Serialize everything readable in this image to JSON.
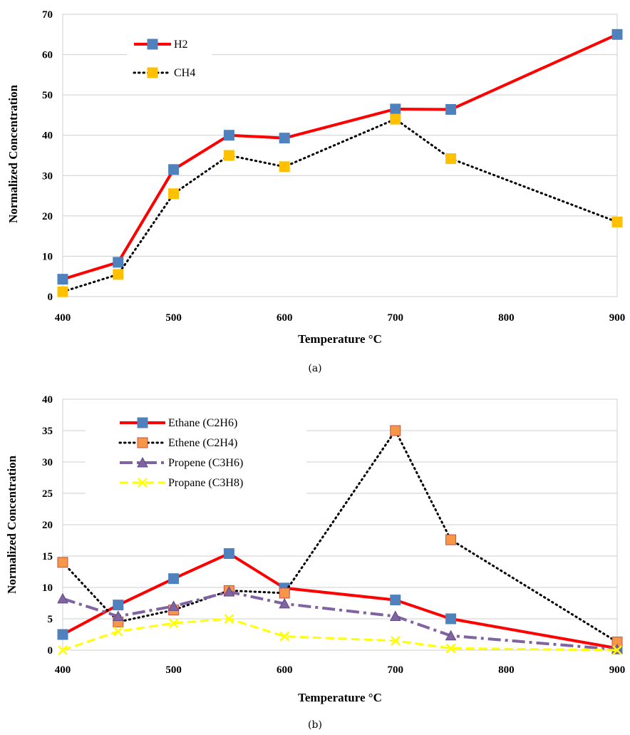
{
  "chart_data": [
    {
      "type": "line",
      "caption": "(a)",
      "xlabel": "Temperature °C",
      "ylabel": "Normalized Concentration",
      "xlim": [
        400,
        900
      ],
      "ylim": [
        0,
        70
      ],
      "xticks": [
        400,
        500,
        600,
        700,
        800,
        900
      ],
      "yticks": [
        0,
        10,
        20,
        30,
        40,
        50,
        60,
        70
      ],
      "grid": "horizontal",
      "legend_position": "top-left",
      "series": [
        {
          "name": "H2",
          "color": "#ff0000",
          "marker_color": "#4f81bd",
          "marker": "square",
          "line_style": "solid",
          "x": [
            400,
            450,
            500,
            550,
            600,
            700,
            750,
            900
          ],
          "y": [
            4.3,
            8.5,
            31.5,
            40.0,
            39.3,
            46.5,
            46.4,
            65.0
          ]
        },
        {
          "name": "CH4",
          "color": "#000000",
          "marker_color": "#ffc000",
          "marker": "square",
          "line_style": "dotted",
          "x": [
            400,
            450,
            500,
            550,
            600,
            700,
            750,
            900
          ],
          "y": [
            1.2,
            5.5,
            25.5,
            35.0,
            32.2,
            44.0,
            34.2,
            18.5
          ]
        }
      ]
    },
    {
      "type": "line",
      "caption": "(b)",
      "xlabel": "Temperature °C",
      "ylabel": "Normalized Concentration",
      "xlim": [
        400,
        900
      ],
      "ylim": [
        0,
        40
      ],
      "xticks": [
        400,
        500,
        600,
        700,
        800,
        900
      ],
      "yticks": [
        0,
        5,
        10,
        15,
        20,
        25,
        30,
        35,
        40
      ],
      "grid": "horizontal",
      "legend_position": "top-left",
      "series": [
        {
          "name": "Ethane (C2H6)",
          "color": "#ff0000",
          "marker_color": "#4f81bd",
          "marker": "square",
          "line_style": "solid",
          "x": [
            400,
            450,
            500,
            550,
            600,
            700,
            750,
            900
          ],
          "y": [
            2.5,
            7.2,
            11.4,
            15.4,
            9.9,
            8.0,
            5.0,
            0.3
          ]
        },
        {
          "name": "Ethene (C2H4)",
          "color": "#000000",
          "marker_color": "#f79646",
          "marker": "square",
          "line_style": "dotted",
          "x": [
            400,
            450,
            500,
            550,
            600,
            700,
            750,
            900
          ],
          "y": [
            14.0,
            4.5,
            6.4,
            9.5,
            9.1,
            35.0,
            17.6,
            1.3
          ]
        },
        {
          "name": "Propene (C3H6)",
          "color": "#8064a2",
          "marker_color": "#8064a2",
          "marker": "triangle",
          "line_style": "dash-dot",
          "x": [
            400,
            450,
            500,
            550,
            600,
            700,
            750,
            900
          ],
          "y": [
            8.2,
            5.4,
            7.0,
            9.3,
            7.4,
            5.4,
            2.3,
            0.1
          ]
        },
        {
          "name": "Propane (C3H8)",
          "color": "#ffff00",
          "marker_color": "#ffff00",
          "marker": "x",
          "line_style": "dashed",
          "x": [
            400,
            450,
            500,
            550,
            600,
            700,
            750,
            900
          ],
          "y": [
            0.0,
            3.0,
            4.3,
            5.0,
            2.2,
            1.5,
            0.3,
            0.0
          ]
        }
      ]
    }
  ]
}
